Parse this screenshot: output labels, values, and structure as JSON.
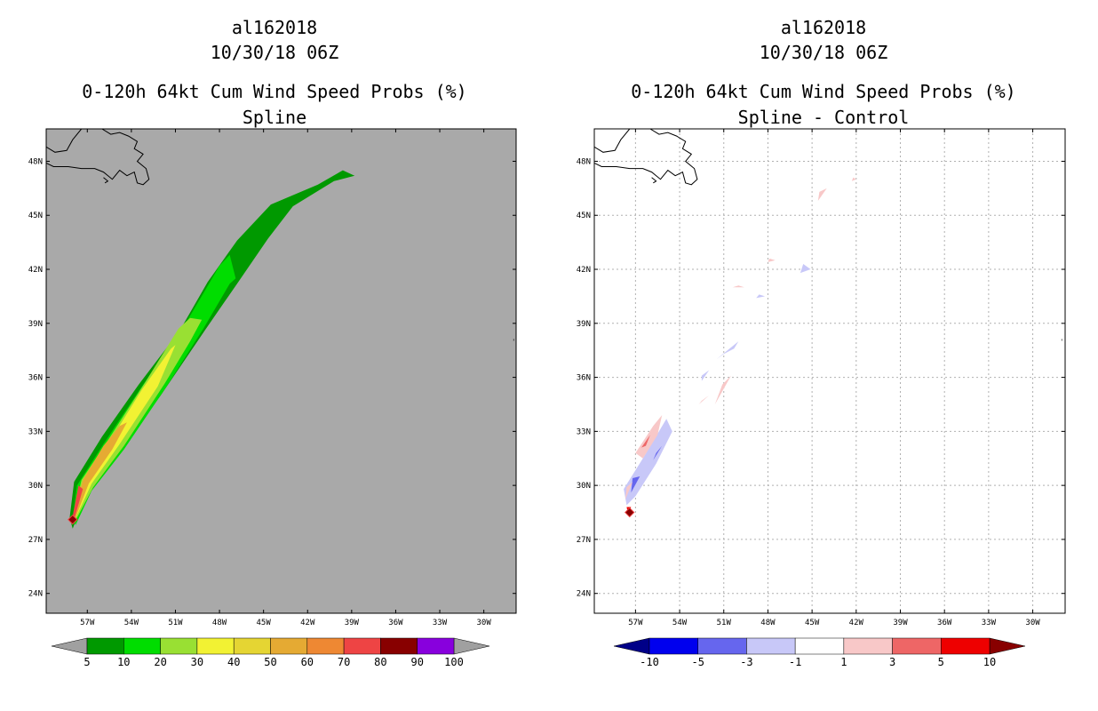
{
  "panels": [
    {
      "storm": "al162018",
      "date": "10/30/18 06Z",
      "title": "0-120h 64kt Cum Wind Speed Probs (%)",
      "subtitle": "Spline",
      "background": "#a9a9a9",
      "colorbar": {
        "labels": [
          "5",
          "10",
          "20",
          "30",
          "40",
          "50",
          "60",
          "70",
          "80",
          "90",
          "100"
        ],
        "colors": [
          "#009900",
          "#00dd00",
          "#99e033",
          "#f2f233",
          "#e5d533",
          "#e5aa33",
          "#ee8833",
          "#ee4444",
          "#880000",
          "#8800dd"
        ],
        "arrow_left": "#a0a0a0",
        "arrow_right": "#a0a0a0"
      },
      "contours": [
        {
          "color": "#009900",
          "lines": [
            [
              "lower",
              [
                [
                  -58.0,
                  27.6
                ],
                [
                  -57.2,
                  29.2
                ],
                [
                  -55.0,
                  31.6
                ],
                [
                  -52.0,
                  35.0
                ],
                [
                  -49.0,
                  38.6
                ],
                [
                  -46.8,
                  41.2
                ],
                [
                  -44.7,
                  43.7
                ],
                [
                  -43.0,
                  45.5
                ],
                [
                  -40.2,
                  46.9
                ],
                [
                  -38.8,
                  47.2
                ]
              ]
            ],
            [
              "upper",
              [
                [
                  -58.2,
                  28.2
                ],
                [
                  -57.9,
                  30.2
                ],
                [
                  -56.0,
                  32.7
                ],
                [
                  -53.5,
                  35.6
                ],
                [
                  -50.7,
                  38.6
                ],
                [
                  -48.8,
                  41.3
                ],
                [
                  -46.8,
                  43.6
                ],
                [
                  -44.5,
                  45.6
                ],
                [
                  -41.3,
                  46.7
                ],
                [
                  -39.6,
                  47.5
                ]
              ]
            ]
          ]
        },
        {
          "color": "#00dd00",
          "lines": [
            [
              "lower",
              [
                [
                  -57.8,
                  27.8
                ],
                [
                  -56.7,
                  29.7
                ],
                [
                  -54.5,
                  32.0
                ],
                [
                  -51.6,
                  35.5
                ],
                [
                  -49.1,
                  38.7
                ],
                [
                  -47.3,
                  41.2
                ],
                [
                  -46.9,
                  41.5
                ]
              ]
            ],
            [
              "upper",
              [
                [
                  -58.0,
                  28.2
                ],
                [
                  -57.7,
                  30.0
                ],
                [
                  -55.9,
                  32.3
                ],
                [
                  -53.2,
                  35.6
                ],
                [
                  -50.3,
                  39.0
                ],
                [
                  -48.0,
                  42.2
                ],
                [
                  -47.3,
                  42.8
                ]
              ]
            ]
          ]
        },
        {
          "color": "#99e033",
          "lines": [
            [
              "lower",
              [
                [
                  -57.9,
                  27.9
                ],
                [
                  -56.6,
                  29.9
                ],
                [
                  -54.5,
                  32.2
                ],
                [
                  -51.7,
                  35.7
                ],
                [
                  -50.0,
                  38.0
                ],
                [
                  -49.2,
                  39.2
                ]
              ]
            ],
            [
              "upper",
              [
                [
                  -58.0,
                  28.2
                ],
                [
                  -57.4,
                  30.3
                ],
                [
                  -55.6,
                  32.5
                ],
                [
                  -53.0,
                  35.8
                ],
                [
                  -50.8,
                  38.7
                ],
                [
                  -50.0,
                  39.3
                ]
              ]
            ]
          ]
        },
        {
          "color": "#f2f233",
          "lines": [
            [
              "lower",
              [
                [
                  -57.9,
                  28.0
                ],
                [
                  -56.7,
                  30.1
                ],
                [
                  -54.8,
                  32.3
                ],
                [
                  -52.2,
                  35.5
                ],
                [
                  -51.0,
                  37.8
                ]
              ]
            ],
            [
              "upper",
              [
                [
                  -58.0,
                  28.2
                ],
                [
                  -57.3,
                  30.3
                ],
                [
                  -55.5,
                  32.4
                ],
                [
                  -53.3,
                  35.3
                ],
                [
                  -51.3,
                  37.6
                ]
              ]
            ]
          ]
        },
        {
          "color": "#e5aa33",
          "lines": [
            [
              "lower",
              [
                [
                  -57.9,
                  28.0
                ],
                [
                  -56.9,
                  30.1
                ],
                [
                  -55.3,
                  32.0
                ],
                [
                  -54.3,
                  33.5
                ]
              ]
            ],
            [
              "upper",
              [
                [
                  -58.0,
                  28.2
                ],
                [
                  -57.3,
                  30.3
                ],
                [
                  -55.9,
                  32.2
                ],
                [
                  -54.8,
                  33.3
                ]
              ]
            ]
          ]
        },
        {
          "color": "#ee4444",
          "lines": [
            [
              "lower",
              [
                [
                  -57.9,
                  28.1
                ],
                [
                  -57.3,
                  29.8
                ]
              ]
            ],
            [
              "upper",
              [
                [
                  -58.0,
                  28.3
                ],
                [
                  -57.6,
                  30.0
                ]
              ]
            ]
          ]
        }
      ],
      "marker": {
        "lon": -58.0,
        "lat": 28.1,
        "color": "#880000"
      }
    },
    {
      "storm": "al162018",
      "date": "10/30/18 06Z",
      "title": "0-120h 64kt Cum Wind Speed Probs (%)",
      "subtitle": "Spline - Control",
      "background": "#ffffff",
      "colorbar": {
        "labels": [
          "-10",
          "-5",
          "-3",
          "-1",
          "1",
          "3",
          "5",
          "10"
        ],
        "colors": [
          "#0000ee",
          "#6666ee",
          "#c8c8f8",
          "#ffffff",
          "#f8c8c8",
          "#ee6666",
          "#ee0000"
        ],
        "arrow_left": "#000088",
        "arrow_right": "#880000"
      },
      "blobs": [
        {
          "color": "#c8c8f8",
          "points": [
            [
              -57.8,
              29.8
            ],
            [
              -56.5,
              31.5
            ],
            [
              -54.9,
              33.7
            ],
            [
              -54.5,
              33.0
            ],
            [
              -55.6,
              31.2
            ],
            [
              -57.0,
              29.4
            ],
            [
              -57.6,
              28.9
            ]
          ]
        },
        {
          "color": "#6666ee",
          "points": [
            [
              -57.3,
              29.6
            ],
            [
              -56.7,
              30.5
            ],
            [
              -57.2,
              30.4
            ]
          ]
        },
        {
          "color": "#6666ee",
          "points": [
            [
              -55.8,
              31.4
            ],
            [
              -55.2,
              32.2
            ],
            [
              -55.6,
              31.8
            ]
          ]
        },
        {
          "color": "#f8c8c8",
          "points": [
            [
              -57.0,
              31.8
            ],
            [
              -55.8,
              33.3
            ],
            [
              -55.2,
              33.9
            ],
            [
              -55.5,
              32.8
            ],
            [
              -56.5,
              31.5
            ]
          ]
        },
        {
          "color": "#ee6666",
          "points": [
            [
              -56.6,
              32.1
            ],
            [
              -56.0,
              32.8
            ],
            [
              -56.3,
              32.2
            ]
          ]
        },
        {
          "color": "#f8c8c8",
          "points": [
            [
              -57.7,
              29.2
            ],
            [
              -57.2,
              30.2
            ],
            [
              -57.6,
              29.9
            ]
          ]
        },
        {
          "color": "#ee0000",
          "points": [
            [
              -57.5,
              28.4
            ],
            [
              -57.3,
              28.8
            ],
            [
              -57.6,
              28.8
            ]
          ]
        },
        {
          "color": "#c8c8f8",
          "points": [
            [
              -52.5,
              35.8
            ],
            [
              -52.0,
              36.4
            ],
            [
              -52.5,
              36.1
            ]
          ]
        },
        {
          "color": "#c8c8f8",
          "points": [
            [
              -51.5,
              37.0
            ],
            [
              -50.0,
              38.0
            ],
            [
              -50.3,
              37.6
            ],
            [
              -51.0,
              37.3
            ]
          ]
        },
        {
          "color": "#f8c8c8",
          "points": [
            [
              -51.6,
              34.5
            ],
            [
              -50.5,
              36.1
            ],
            [
              -51.1,
              35.6
            ]
          ]
        },
        {
          "color": "#f8c8c8",
          "points": [
            [
              -52.7,
              34.5
            ],
            [
              -52.0,
              35.0
            ],
            [
              -52.5,
              34.7
            ]
          ]
        },
        {
          "color": "#c8c8f8",
          "points": [
            [
              -45.8,
              41.8
            ],
            [
              -45.1,
              42.0
            ],
            [
              -45.6,
              42.3
            ]
          ]
        },
        {
          "color": "#c8c8f8",
          "points": [
            [
              -48.8,
              40.4
            ],
            [
              -48.2,
              40.5
            ],
            [
              -48.6,
              40.6
            ]
          ]
        },
        {
          "color": "#f8c8c8",
          "points": [
            [
              -50.4,
              41.0
            ],
            [
              -49.6,
              41.0
            ],
            [
              -50.0,
              41.1
            ]
          ]
        },
        {
          "color": "#f8c8c8",
          "points": [
            [
              -48.0,
              42.4
            ],
            [
              -47.5,
              42.5
            ],
            [
              -47.9,
              42.6
            ]
          ]
        },
        {
          "color": "#f8c8c8",
          "points": [
            [
              -44.6,
              45.8
            ],
            [
              -44.0,
              46.5
            ],
            [
              -44.5,
              46.3
            ]
          ]
        },
        {
          "color": "#f8c8c8",
          "points": [
            [
              -42.3,
              46.9
            ],
            [
              -42.0,
              47.0
            ],
            [
              -42.2,
              47.1
            ]
          ]
        }
      ],
      "marker": {
        "lon": -57.4,
        "lat": 28.5,
        "color": "#880000"
      }
    }
  ],
  "axes": {
    "lon_ticks": [
      -57,
      -54,
      -51,
      -48,
      -45,
      -42,
      -39,
      -36,
      -33,
      -30
    ],
    "lon_labels": [
      "57W",
      "54W",
      "51W",
      "48W",
      "45W",
      "42W",
      "39W",
      "36W",
      "33W",
      "30W"
    ],
    "lat_ticks": [
      24,
      27,
      30,
      33,
      36,
      39,
      42,
      45,
      48
    ],
    "lat_labels": [
      "24N",
      "27N",
      "30N",
      "33N",
      "36N",
      "39N",
      "42N",
      "45N",
      "48N"
    ],
    "lon_range": [
      -59.8,
      -27.8
    ],
    "lat_range": [
      22.9,
      49.8
    ]
  }
}
